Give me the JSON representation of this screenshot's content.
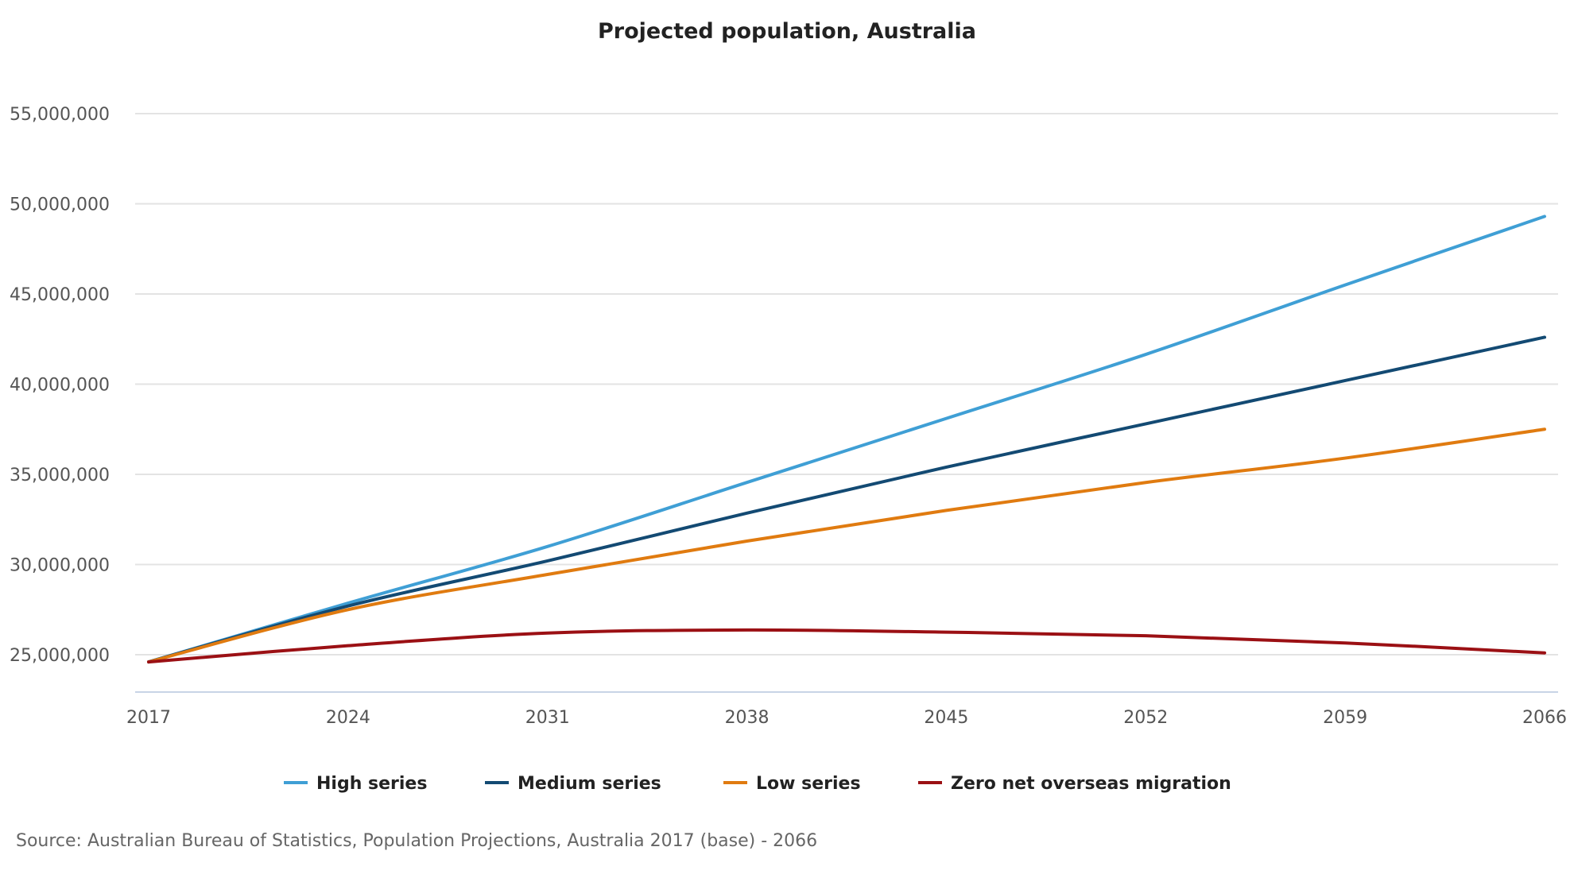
{
  "chart_data": {
    "type": "line",
    "title": "Projected population, Australia",
    "xlabel": "",
    "ylabel": "",
    "x_tick_labels": [
      "2017",
      "2024",
      "2031",
      "2038",
      "2045",
      "2052",
      "2059",
      "2066"
    ],
    "x_range": [
      2017,
      2066
    ],
    "y_tick_labels": [
      "25,000,000",
      "30,000,000",
      "35,000,000",
      "40,000,000",
      "45,000,000",
      "50,000,000",
      "55,000,000"
    ],
    "y_ticks": [
      25000000,
      30000000,
      35000000,
      40000000,
      45000000,
      50000000,
      55000000
    ],
    "ylim": [
      23000000,
      55000000
    ],
    "grid": true,
    "legend_position": "bottom",
    "x": [
      2017,
      2024,
      2031,
      2038,
      2045,
      2052,
      2059,
      2066
    ],
    "series": [
      {
        "name": "High series",
        "color": "#3f9fd5",
        "values": [
          24600000,
          27860000,
          31000000,
          34550000,
          38100000,
          41650000,
          45500000,
          49300000
        ]
      },
      {
        "name": "Medium series",
        "color": "#134a73",
        "values": [
          24600000,
          27700000,
          30200000,
          32850000,
          35400000,
          37800000,
          40200000,
          42600000
        ]
      },
      {
        "name": "Low series",
        "color": "#e07b10",
        "values": [
          24600000,
          27500000,
          29450000,
          31300000,
          33000000,
          34550000,
          35900000,
          37500000
        ]
      },
      {
        "name": "Zero net overseas migration",
        "color": "#9b1014",
        "values": [
          24600000,
          25500000,
          26200000,
          26370000,
          26250000,
          26050000,
          25650000,
          25100000
        ]
      }
    ],
    "source": "Source: Australian Bureau of Statistics, Population Projections, Australia 2017 (base) - 2066"
  }
}
